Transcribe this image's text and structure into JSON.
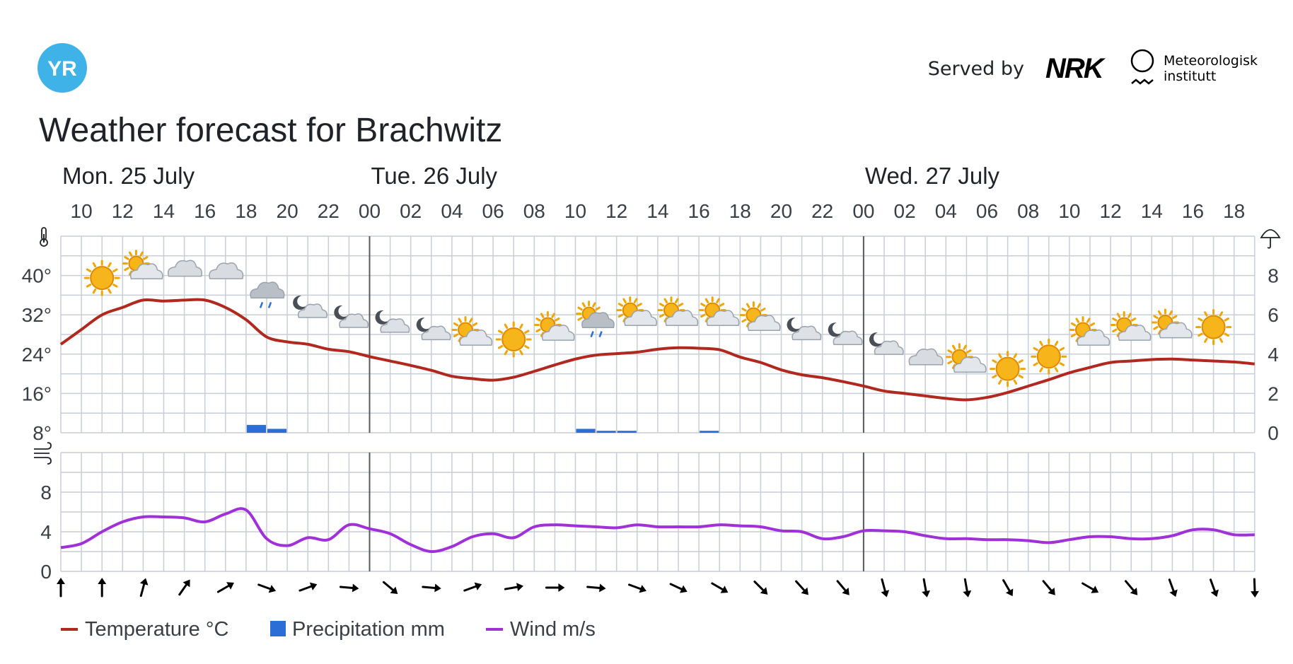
{
  "header": {
    "logo_text": "YR",
    "served_by": "Served by",
    "nrk_logo_text": "NRK",
    "met_line1": "Meteorologisk",
    "met_line2": "institutt",
    "title": "Weather forecast for Brachwitz"
  },
  "legend": {
    "temperature": "Temperature °C",
    "precipitation": "Precipitation mm",
    "wind": "Wind m/s"
  },
  "colors": {
    "temperature": "#b0281e",
    "precipitation": "#2b6fd6",
    "wind": "#a030d8",
    "grid": "#c8ced6",
    "day_divider": "#555a60",
    "logo": "#3fb3e8"
  },
  "chart_data": {
    "type": "line",
    "x_unit": "hour",
    "days": [
      {
        "label": "Mon. 25 July",
        "start_hour": 9
      },
      {
        "label": "Tue. 26 July",
        "start_hour": 24
      },
      {
        "label": "Wed. 27 July",
        "start_hour": 48
      }
    ],
    "x_range": [
      9,
      67
    ],
    "x_tick_labels": [
      "10",
      "12",
      "14",
      "16",
      "18",
      "20",
      "22",
      "00",
      "02",
      "04",
      "06",
      "08",
      "10",
      "12",
      "14",
      "16",
      "18",
      "20",
      "22",
      "00",
      "02",
      "04",
      "06",
      "08",
      "10",
      "12",
      "14",
      "16",
      "18"
    ],
    "temperature": {
      "ylim": [
        8,
        48
      ],
      "y_tick_labels": [
        "40°",
        "32°",
        "24°",
        "16°",
        "8°"
      ],
      "y_ticks": [
        40,
        32,
        24,
        16,
        8
      ],
      "x": [
        9,
        10,
        11,
        12,
        13,
        14,
        15,
        16,
        17,
        18,
        19,
        20,
        21,
        22,
        23,
        24,
        25,
        26,
        27,
        28,
        29,
        30,
        31,
        32,
        33,
        34,
        35,
        36,
        37,
        38,
        39,
        40,
        41,
        42,
        43,
        44,
        45,
        46,
        47,
        48,
        49,
        50,
        51,
        52,
        53,
        54,
        55,
        56,
        57,
        58,
        59,
        60,
        61,
        62,
        63,
        64,
        65,
        66,
        67
      ],
      "values": [
        26,
        29,
        32,
        33.5,
        35,
        34.8,
        35,
        35,
        33.5,
        31,
        27.5,
        26.5,
        26,
        25,
        24.5,
        23.5,
        22.6,
        21.7,
        20.7,
        19.5,
        19,
        18.7,
        19.3,
        20.5,
        21.8,
        23,
        23.8,
        24.1,
        24.4,
        25,
        25.3,
        25.2,
        24.9,
        23.4,
        22.3,
        20.8,
        19.8,
        19.2,
        18.4,
        17.5,
        16.5,
        16,
        15.5,
        15,
        14.7,
        15.2,
        16.2,
        17.5,
        18.8,
        20.2,
        21.3,
        22.3,
        22.6,
        22.9,
        23,
        22.8,
        22.6,
        22.4,
        22
      ]
    },
    "precipitation": {
      "ylim": [
        0,
        10
      ],
      "y_tick_labels": [
        "8",
        "6",
        "4",
        "2",
        "0"
      ],
      "y_ticks": [
        8,
        6,
        4,
        2,
        0
      ],
      "bars": [
        {
          "hour": 18,
          "value": 0.4
        },
        {
          "hour": 19,
          "value": 0.2
        },
        {
          "hour": 34,
          "value": 0.2
        },
        {
          "hour": 35,
          "value": 0.1
        },
        {
          "hour": 36,
          "value": 0.1
        },
        {
          "hour": 40,
          "value": 0.1
        }
      ]
    },
    "wind": {
      "ylim": [
        0,
        12
      ],
      "y_tick_labels": [
        "8",
        "4",
        "0"
      ],
      "y_ticks": [
        8,
        4,
        0
      ],
      "x": [
        9,
        10,
        11,
        12,
        13,
        14,
        15,
        16,
        17,
        18,
        19,
        20,
        21,
        22,
        23,
        24,
        25,
        26,
        27,
        28,
        29,
        30,
        31,
        32,
        33,
        34,
        35,
        36,
        37,
        38,
        39,
        40,
        41,
        42,
        43,
        44,
        45,
        46,
        47,
        48,
        49,
        50,
        51,
        52,
        53,
        54,
        55,
        56,
        57,
        58,
        59,
        60,
        61,
        62,
        63,
        64,
        65,
        66,
        67
      ],
      "values": [
        2.4,
        2.8,
        4,
        5,
        5.5,
        5.5,
        5.4,
        5,
        5.8,
        6.2,
        3.3,
        2.6,
        3.4,
        3.2,
        4.7,
        4.3,
        3.8,
        2.7,
        2,
        2.5,
        3.5,
        3.8,
        3.4,
        4.5,
        4.7,
        4.6,
        4.5,
        4.4,
        4.7,
        4.5,
        4.5,
        4.5,
        4.7,
        4.6,
        4.5,
        4.1,
        4,
        3.3,
        3.5,
        4.1,
        4.1,
        4,
        3.6,
        3.3,
        3.3,
        3.2,
        3.2,
        3.1,
        2.9,
        3.2,
        3.5,
        3.5,
        3.3,
        3.3,
        3.6,
        4.2,
        4.2,
        3.7,
        3.7
      ]
    },
    "weather_symbols": [
      {
        "hour": 11,
        "icon": "clear-day",
        "temp": 39.5
      },
      {
        "hour": 13,
        "icon": "partly-cloudy-day",
        "temp": 41
      },
      {
        "hour": 15,
        "icon": "cloudy",
        "temp": 41
      },
      {
        "hour": 17,
        "icon": "cloudy",
        "temp": 40.5
      },
      {
        "hour": 19,
        "icon": "rain",
        "temp": 36
      },
      {
        "hour": 21,
        "icon": "partly-cloudy-night",
        "temp": 33
      },
      {
        "hour": 23,
        "icon": "partly-cloudy-night",
        "temp": 31
      },
      {
        "hour": 25,
        "icon": "partly-cloudy-night",
        "temp": 30
      },
      {
        "hour": 27,
        "icon": "partly-cloudy-night",
        "temp": 28.5
      },
      {
        "hour": 29,
        "icon": "partly-cloudy-day",
        "temp": 27.5
      },
      {
        "hour": 31,
        "icon": "clear-day",
        "temp": 27
      },
      {
        "hour": 33,
        "icon": "partly-cloudy-day",
        "temp": 28.5
      },
      {
        "hour": 35,
        "icon": "rain-sun",
        "temp": 30.5
      },
      {
        "hour": 37,
        "icon": "partly-cloudy-day",
        "temp": 31.5
      },
      {
        "hour": 39,
        "icon": "partly-cloudy-day",
        "temp": 31.5
      },
      {
        "hour": 41,
        "icon": "partly-cloudy-day",
        "temp": 31.5
      },
      {
        "hour": 43,
        "icon": "partly-cloudy-day",
        "temp": 30.5
      },
      {
        "hour": 45,
        "icon": "partly-cloudy-night",
        "temp": 28.5
      },
      {
        "hour": 47,
        "icon": "partly-cloudy-night",
        "temp": 27.5
      },
      {
        "hour": 49,
        "icon": "partly-cloudy-night",
        "temp": 25.5
      },
      {
        "hour": 51,
        "icon": "cloudy",
        "temp": 23
      },
      {
        "hour": 53,
        "icon": "partly-cloudy-day",
        "temp": 22
      },
      {
        "hour": 55,
        "icon": "clear-day",
        "temp": 21
      },
      {
        "hour": 57,
        "icon": "clear-day",
        "temp": 23.5
      },
      {
        "hour": 59,
        "icon": "partly-cloudy-day",
        "temp": 27.5
      },
      {
        "hour": 61,
        "icon": "partly-cloudy-day",
        "temp": 28.5
      },
      {
        "hour": 63,
        "icon": "partly-cloudy-day",
        "temp": 29
      },
      {
        "hour": 65,
        "icon": "clear-day",
        "temp": 29.5
      }
    ],
    "wind_directions": [
      {
        "hour": 9,
        "deg": 180
      },
      {
        "hour": 11,
        "deg": 180
      },
      {
        "hour": 13,
        "deg": 195
      },
      {
        "hour": 15,
        "deg": 215
      },
      {
        "hour": 17,
        "deg": 240
      },
      {
        "hour": 19,
        "deg": 290
      },
      {
        "hour": 21,
        "deg": 250
      },
      {
        "hour": 23,
        "deg": 275
      },
      {
        "hour": 25,
        "deg": 310
      },
      {
        "hour": 27,
        "deg": 275
      },
      {
        "hour": 29,
        "deg": 250
      },
      {
        "hour": 31,
        "deg": 260
      },
      {
        "hour": 33,
        "deg": 270
      },
      {
        "hour": 35,
        "deg": 275
      },
      {
        "hour": 37,
        "deg": 290
      },
      {
        "hour": 39,
        "deg": 295
      },
      {
        "hour": 41,
        "deg": 300
      },
      {
        "hour": 43,
        "deg": 315
      },
      {
        "hour": 45,
        "deg": 318
      },
      {
        "hour": 47,
        "deg": 320
      },
      {
        "hour": 49,
        "deg": 345
      },
      {
        "hour": 51,
        "deg": 350
      },
      {
        "hour": 53,
        "deg": 350
      },
      {
        "hour": 55,
        "deg": 330
      },
      {
        "hour": 57,
        "deg": 320
      },
      {
        "hour": 59,
        "deg": 300
      },
      {
        "hour": 61,
        "deg": 320
      },
      {
        "hour": 63,
        "deg": 340
      },
      {
        "hour": 65,
        "deg": 340
      },
      {
        "hour": 67,
        "deg": 358
      }
    ]
  }
}
